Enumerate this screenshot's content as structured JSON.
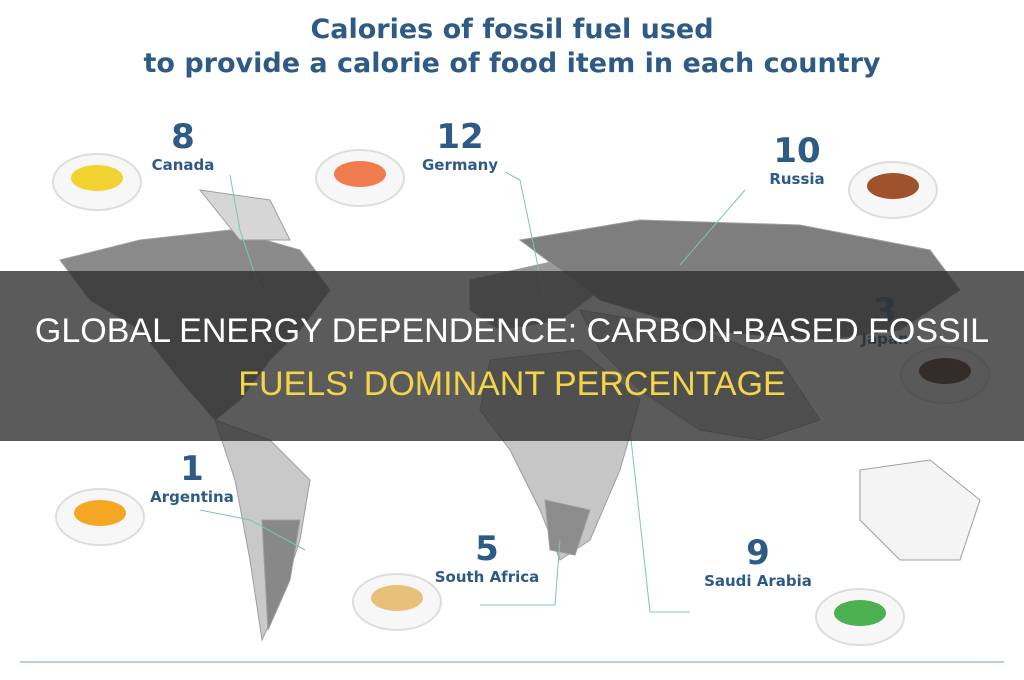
{
  "header": {
    "title_lines": [
      "Calories of fossil fuel used",
      "to provide a calorie of food item in each country"
    ]
  },
  "countries": [
    {
      "number": 8,
      "name": "Canada"
    },
    {
      "number": 12,
      "name": "Germany"
    },
    {
      "number": 10,
      "name": "Russia"
    },
    {
      "number": 3,
      "name": "Japan"
    },
    {
      "number": 1,
      "name": "Argentina"
    },
    {
      "number": 5,
      "name": "South Africa"
    },
    {
      "number": 9,
      "name": "Saudi Arabia"
    }
  ],
  "banner": {
    "title_lines": [
      "GLOBAL ENERGY DEPENDENCE: CARBON-BASED FOSSIL",
      "FUELS' DOMINANT PERCENTAGE"
    ]
  }
}
